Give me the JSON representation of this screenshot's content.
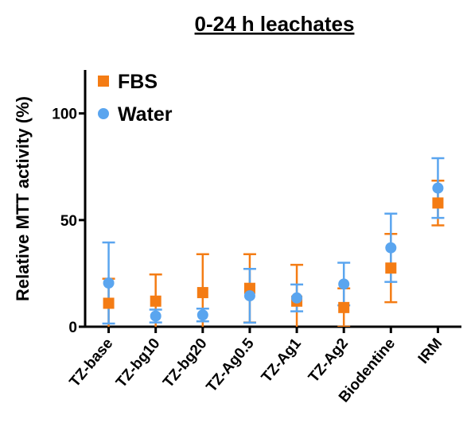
{
  "chart_data": {
    "type": "errorbar_scatter",
    "title": "0-24 h leachates",
    "y_label": "Relative MTT activity (%)",
    "categories": [
      "TZ-base",
      "TZ-bg10",
      "TZ-bg20",
      "TZ-Ag0.5",
      "TZ-Ag1",
      "TZ-Ag2",
      "Biodentine",
      "IRM"
    ],
    "series": [
      {
        "name": "FBS",
        "color": "#f47c14",
        "marker": "square",
        "values": [
          11,
          12,
          16,
          18,
          12,
          9,
          27.5,
          58
        ],
        "errors": [
          11.5,
          12.5,
          18,
          16,
          17,
          9,
          16,
          10.5
        ]
      },
      {
        "name": "Water",
        "color": "#5aa5ef",
        "marker": "circle",
        "values": [
          20.5,
          5,
          5.5,
          14.5,
          13.5,
          20,
          37,
          65
        ],
        "errors": [
          19,
          3,
          3,
          12.6,
          6.3,
          10,
          16,
          14
        ]
      }
    ],
    "ylim": [
      0,
      120
    ],
    "yticks": [
      0,
      50,
      100
    ],
    "legend": "top-left"
  }
}
